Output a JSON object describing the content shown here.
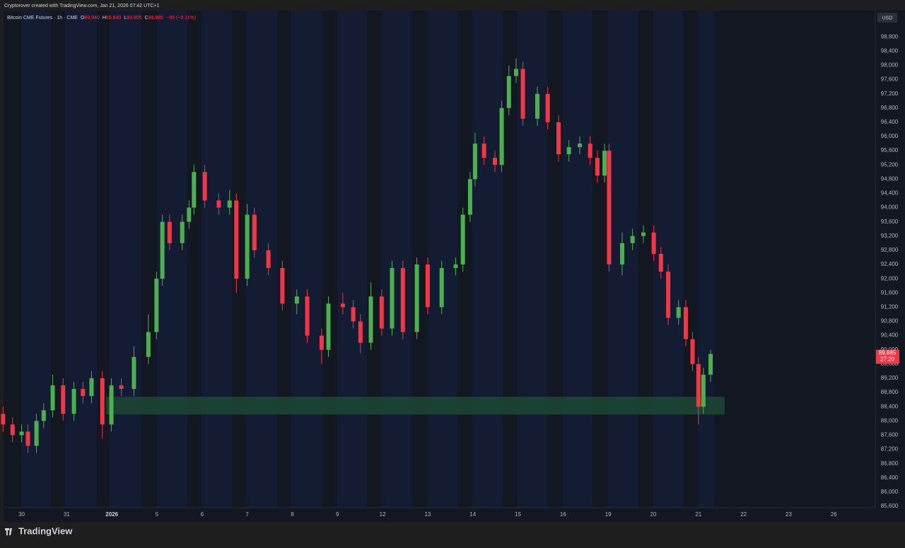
{
  "header": {
    "attribution": "Cryptorover created with TradingView.com, Jan 21, 2026 07:42 UTC+1"
  },
  "legend": {
    "symbol": "Bitcoin CME Futures · 1h · CME",
    "items": [
      {
        "key": "O",
        "value": "89,940"
      },
      {
        "key": "H",
        "value": "89,940"
      },
      {
        "key": "L",
        "value": "89,805"
      },
      {
        "key": "C",
        "value": "89,885"
      }
    ],
    "change": "−95 (−0.11%)"
  },
  "footer": {
    "brand": "TradingView"
  },
  "chart_data": {
    "type": "candlestick",
    "currency": "USD",
    "x": [
      -0.41,
      -0.2,
      0,
      0.14,
      0.33,
      0.49,
      0.69,
      0.92,
      1.16,
      1.36,
      1.55,
      1.79,
      1.99,
      2.21,
      2.49,
      2.81,
      2.99,
      3.12,
      3.28,
      3.56,
      3.71,
      3.82,
      4.06,
      4.37,
      4.61,
      4.76,
      5,
      5.16,
      5.47,
      5.78,
      6.1,
      6.33,
      6.65,
      6.8,
      7.12,
      7.35,
      7.51,
      7.74,
      7.98,
      8.21,
      8.45,
      8.76,
      9,
      9.31,
      9.62,
      9.78,
      9.94,
      10.05,
      10.25,
      10.49,
      10.64,
      10.8,
      10.96,
      11.11,
      11.43,
      11.66,
      11.9,
      12.13,
      12.37,
      12.6,
      12.76,
      12.92,
      13.02,
      13.31,
      13.54,
      13.78,
      14.01,
      14.17,
      14.33,
      14.56,
      14.72,
      14.87,
      15,
      15.11,
      15.27
    ],
    "open": [
      88200,
      87900,
      87600,
      87700,
      87300,
      88000,
      88300,
      89000,
      88200,
      88900,
      88700,
      89200,
      87900,
      89000,
      88900,
      89800,
      90500,
      92000,
      93600,
      93000,
      93600,
      94000,
      95000,
      94200,
      94000,
      94200,
      92000,
      93800,
      92800,
      92300,
      91300,
      91500,
      90400,
      90000,
      91300,
      91200,
      90800,
      90200,
      91500,
      90600,
      92300,
      90500,
      92400,
      91200,
      92300,
      92400,
      93800,
      94800,
      95800,
      95400,
      95200,
      96800,
      97700,
      97900,
      96500,
      97200,
      96400,
      95500,
      95700,
      95800,
      95400,
      94900,
      95600,
      92400,
      93000,
      93200,
      93300,
      92700,
      92200,
      90900,
      91200,
      90300,
      89600,
      88400,
      89300
    ],
    "high": [
      88400,
      88100,
      87900,
      87900,
      88200,
      88500,
      89300,
      89200,
      89100,
      89100,
      89400,
      89400,
      89200,
      89200,
      90100,
      91000,
      92200,
      93800,
      93800,
      93800,
      94200,
      95200,
      95200,
      94400,
      94500,
      94400,
      94100,
      94000,
      93000,
      92500,
      91700,
      91700,
      90600,
      91500,
      91600,
      91400,
      91000,
      91900,
      91700,
      92500,
      92500,
      92600,
      92600,
      92500,
      92600,
      94000,
      95000,
      96100,
      96000,
      95600,
      97000,
      98000,
      98200,
      98100,
      97400,
      97400,
      96600,
      95900,
      96000,
      96000,
      95600,
      95800,
      95800,
      93300,
      93400,
      93500,
      93500,
      92900,
      92400,
      91400,
      91400,
      90500,
      89800,
      89500,
      90000
    ],
    "low": [
      87700,
      87400,
      87400,
      87100,
      87100,
      87800,
      88100,
      88000,
      88000,
      88500,
      88500,
      87500,
      87700,
      88700,
      88700,
      89600,
      90300,
      91800,
      92800,
      92800,
      93400,
      93800,
      94000,
      93800,
      93800,
      91600,
      91800,
      92600,
      92100,
      91100,
      91000,
      90200,
      89600,
      89800,
      91000,
      90600,
      89900,
      90000,
      90400,
      90400,
      90300,
      90300,
      91000,
      91000,
      92100,
      92200,
      93600,
      94600,
      95200,
      95000,
      95000,
      96600,
      97500,
      96300,
      96300,
      96200,
      95300,
      95300,
      95500,
      95200,
      94700,
      94700,
      92200,
      92100,
      92800,
      93000,
      92500,
      92000,
      90700,
      90700,
      90100,
      89400,
      87900,
      88200,
      89100
    ],
    "close": [
      87900,
      87600,
      87700,
      87300,
      88000,
      88300,
      89000,
      88200,
      88900,
      88700,
      89200,
      87900,
      89000,
      88900,
      89800,
      90500,
      92000,
      93600,
      93000,
      93600,
      94000,
      95000,
      94200,
      94000,
      94200,
      92000,
      93800,
      92800,
      92300,
      91300,
      91500,
      90400,
      90000,
      91300,
      91200,
      90800,
      90200,
      91500,
      90600,
      92300,
      90500,
      92400,
      91200,
      92300,
      92400,
      93800,
      94800,
      95800,
      95400,
      95200,
      96800,
      97700,
      97900,
      96500,
      97200,
      96400,
      95500,
      95700,
      95800,
      95400,
      94900,
      95600,
      92400,
      93000,
      93200,
      93300,
      92700,
      92200,
      90900,
      91200,
      90300,
      89600,
      88400,
      89300,
      89885
    ],
    "up_color": "#4caf50",
    "down_color": "#f23645",
    "xlim": [
      -0.4,
      18.92
    ],
    "xticks": [
      {
        "value": 0,
        "label": "30"
      },
      {
        "value": 1,
        "label": "31"
      },
      {
        "value": 2,
        "label": "2026"
      },
      {
        "value": 3,
        "label": "5"
      },
      {
        "value": 4,
        "label": "6"
      },
      {
        "value": 5,
        "label": "7"
      },
      {
        "value": 6,
        "label": "8"
      },
      {
        "value": 7,
        "label": "9"
      },
      {
        "value": 8,
        "label": "12"
      },
      {
        "value": 9,
        "label": "13"
      },
      {
        "value": 10,
        "label": "14"
      },
      {
        "value": 11,
        "label": "15"
      },
      {
        "value": 12,
        "label": "16"
      },
      {
        "value": 13,
        "label": "19"
      },
      {
        "value": 14,
        "label": "20"
      },
      {
        "value": 15,
        "label": "21"
      },
      {
        "value": 16,
        "label": "22"
      },
      {
        "value": 17,
        "label": "23"
      },
      {
        "value": 18,
        "label": "26"
      }
    ],
    "ylim": [
      85560,
      99540
    ],
    "yticks": [
      {
        "value": 85600,
        "label": "85,600"
      },
      {
        "value": 86000,
        "label": "86,000"
      },
      {
        "value": 86400,
        "label": "86,400"
      },
      {
        "value": 86800,
        "label": "86,800"
      },
      {
        "value": 87200,
        "label": "87,200"
      },
      {
        "value": 87600,
        "label": "87,600"
      },
      {
        "value": 88000,
        "label": "88,000"
      },
      {
        "value": 88400,
        "label": "88,400"
      },
      {
        "value": 88800,
        "label": "88,800"
      },
      {
        "value": 89200,
        "label": "89,200"
      },
      {
        "value": 89600,
        "label": "89,600"
      },
      {
        "value": 90000,
        "label": "90,000"
      },
      {
        "value": 90400,
        "label": "90,400"
      },
      {
        "value": 90800,
        "label": "90,800"
      },
      {
        "value": 91200,
        "label": "91,200"
      },
      {
        "value": 91600,
        "label": "91,600"
      },
      {
        "value": 92000,
        "label": "92,000"
      },
      {
        "value": 92400,
        "label": "92,400"
      },
      {
        "value": 92800,
        "label": "92,800"
      },
      {
        "value": 93200,
        "label": "93,200"
      },
      {
        "value": 93600,
        "label": "93,600"
      },
      {
        "value": 94000,
        "label": "94,000"
      },
      {
        "value": 94400,
        "label": "94,400"
      },
      {
        "value": 94800,
        "label": "94,800"
      },
      {
        "value": 95200,
        "label": "95,200"
      },
      {
        "value": 95600,
        "label": "95,600"
      },
      {
        "value": 96000,
        "label": "96,000"
      },
      {
        "value": 96400,
        "label": "96,400"
      },
      {
        "value": 96800,
        "label": "96,800"
      },
      {
        "value": 97200,
        "label": "97,200"
      },
      {
        "value": 97600,
        "label": "97,600"
      },
      {
        "value": 98000,
        "label": "98,000"
      },
      {
        "value": 98400,
        "label": "98,400"
      },
      {
        "value": 98800,
        "label": "98,800"
      }
    ],
    "zone": {
      "x": [
        1.87,
        15.58
      ],
      "y": [
        88180,
        88680
      ],
      "color": "#1e4a34"
    },
    "last_price": {
      "value": 89885,
      "label": "89,885"
    },
    "countdown": "27:20"
  }
}
